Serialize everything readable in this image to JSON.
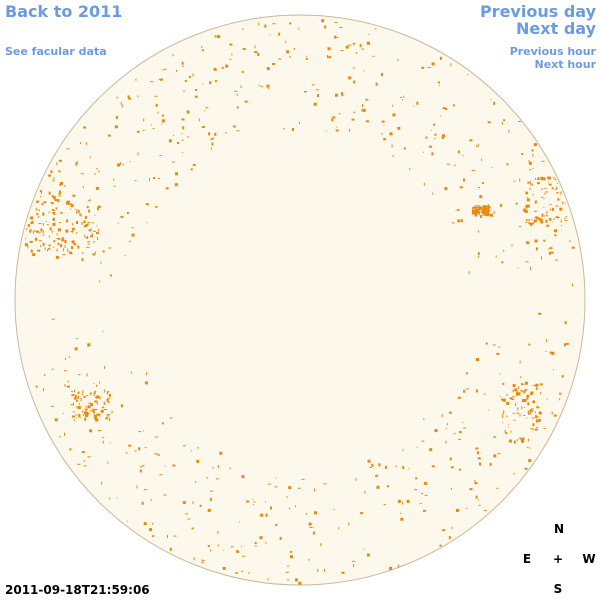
{
  "header": {
    "back_link": "Back to 2011",
    "facular_link": "See facular data",
    "previous_day": "Previous day",
    "next_day": "Next day",
    "previous_hour": "Previous hour",
    "next_hour": "Next hour"
  },
  "timestamp": "2011-09-18T21:59:06",
  "compass": {
    "north": "N",
    "east": "E",
    "center": "+",
    "west": "W",
    "south": "S"
  }
}
